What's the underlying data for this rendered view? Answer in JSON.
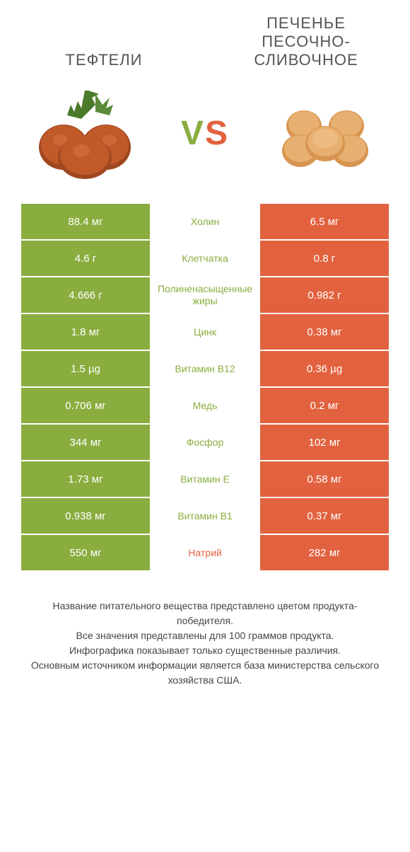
{
  "header": {
    "left_title": "ТЕФТЕЛИ",
    "right_title": "ПЕЧЕНЬЕ ПЕСОЧНО-СЛИВОЧНОЕ"
  },
  "vs": {
    "v": "V",
    "s": "S"
  },
  "colors": {
    "left": "#8aad3f",
    "right": "#e2623f",
    "mid_text_left": "#8aad3f",
    "mid_text_right": "#e2623f",
    "background": "#ffffff"
  },
  "rows": [
    {
      "left": "88.4 мг",
      "label": "Холин",
      "right": "6.5 мг",
      "winner": "left"
    },
    {
      "left": "4.6 г",
      "label": "Клетчатка",
      "right": "0.8 г",
      "winner": "left"
    },
    {
      "left": "4.666 г",
      "label": "Полиненасыщенные жиры",
      "right": "0.982 г",
      "winner": "left"
    },
    {
      "left": "1.8 мг",
      "label": "Цинк",
      "right": "0.38 мг",
      "winner": "left"
    },
    {
      "left": "1.5 µg",
      "label": "Витамин B12",
      "right": "0.36 µg",
      "winner": "left"
    },
    {
      "left": "0.706 мг",
      "label": "Медь",
      "right": "0.2 мг",
      "winner": "left"
    },
    {
      "left": "344 мг",
      "label": "Фосфор",
      "right": "102 мг",
      "winner": "left"
    },
    {
      "left": "1.73 мг",
      "label": "Витамин E",
      "right": "0.58 мг",
      "winner": "left"
    },
    {
      "left": "0.938 мг",
      "label": "Витамин B1",
      "right": "0.37 мг",
      "winner": "left"
    },
    {
      "left": "550 мг",
      "label": "Натрий",
      "right": "282 мг",
      "winner": "right"
    }
  ],
  "footer": {
    "line1": "Название питательного вещества представлено цветом продукта-победителя.",
    "line2": "Все значения представлены для 100 граммов продукта.",
    "line3": "Инфографика показывает только существенные различия.",
    "line4": "Основным источником информации является база министерства сельского хозяйства США."
  }
}
